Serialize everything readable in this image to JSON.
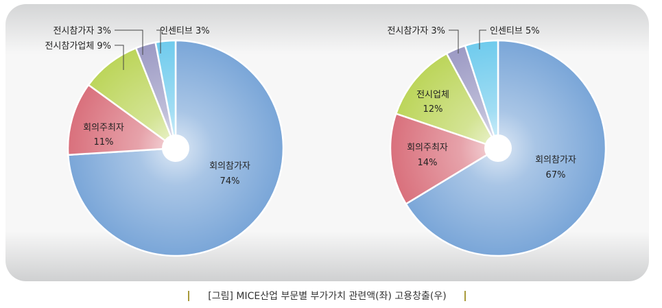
{
  "caption": "[그림] MICE산업 부문별 부가가치 관련액(좌) 고용창출(우)",
  "chart_data": [
    {
      "type": "pie",
      "title": "",
      "slices": [
        {
          "label": "회의참가자",
          "value_label": "74%",
          "value": 74,
          "color": "#7aa6d8"
        },
        {
          "label": "회의주최자",
          "value_label": "11%",
          "value": 11,
          "color": "#d9707c"
        },
        {
          "label": "전시참가업체",
          "value_label": "9%",
          "value": 9,
          "color": "#bcd55a"
        },
        {
          "label": "전시참가자",
          "value_label": "3%",
          "value": 3,
          "color": "#9c9ac4"
        },
        {
          "label": "인센티브",
          "value_label": "3%",
          "value": 3,
          "color": "#6fcbed"
        }
      ]
    },
    {
      "type": "pie",
      "title": "",
      "slices": [
        {
          "label": "회의참가자",
          "value_label": "67%",
          "value": 67,
          "color": "#7aa6d8"
        },
        {
          "label": "회의주최자",
          "value_label": "14%",
          "value": 14,
          "color": "#d9707c"
        },
        {
          "label": "전시업체",
          "value_label": "12%",
          "value": 12,
          "color": "#bcd55a"
        },
        {
          "label": "전시참가자",
          "value_label": "3%",
          "value": 3,
          "color": "#9c9ac4"
        },
        {
          "label": "인센티브",
          "value_label": "5%",
          "value": 5,
          "color": "#6fcbed"
        }
      ]
    }
  ]
}
